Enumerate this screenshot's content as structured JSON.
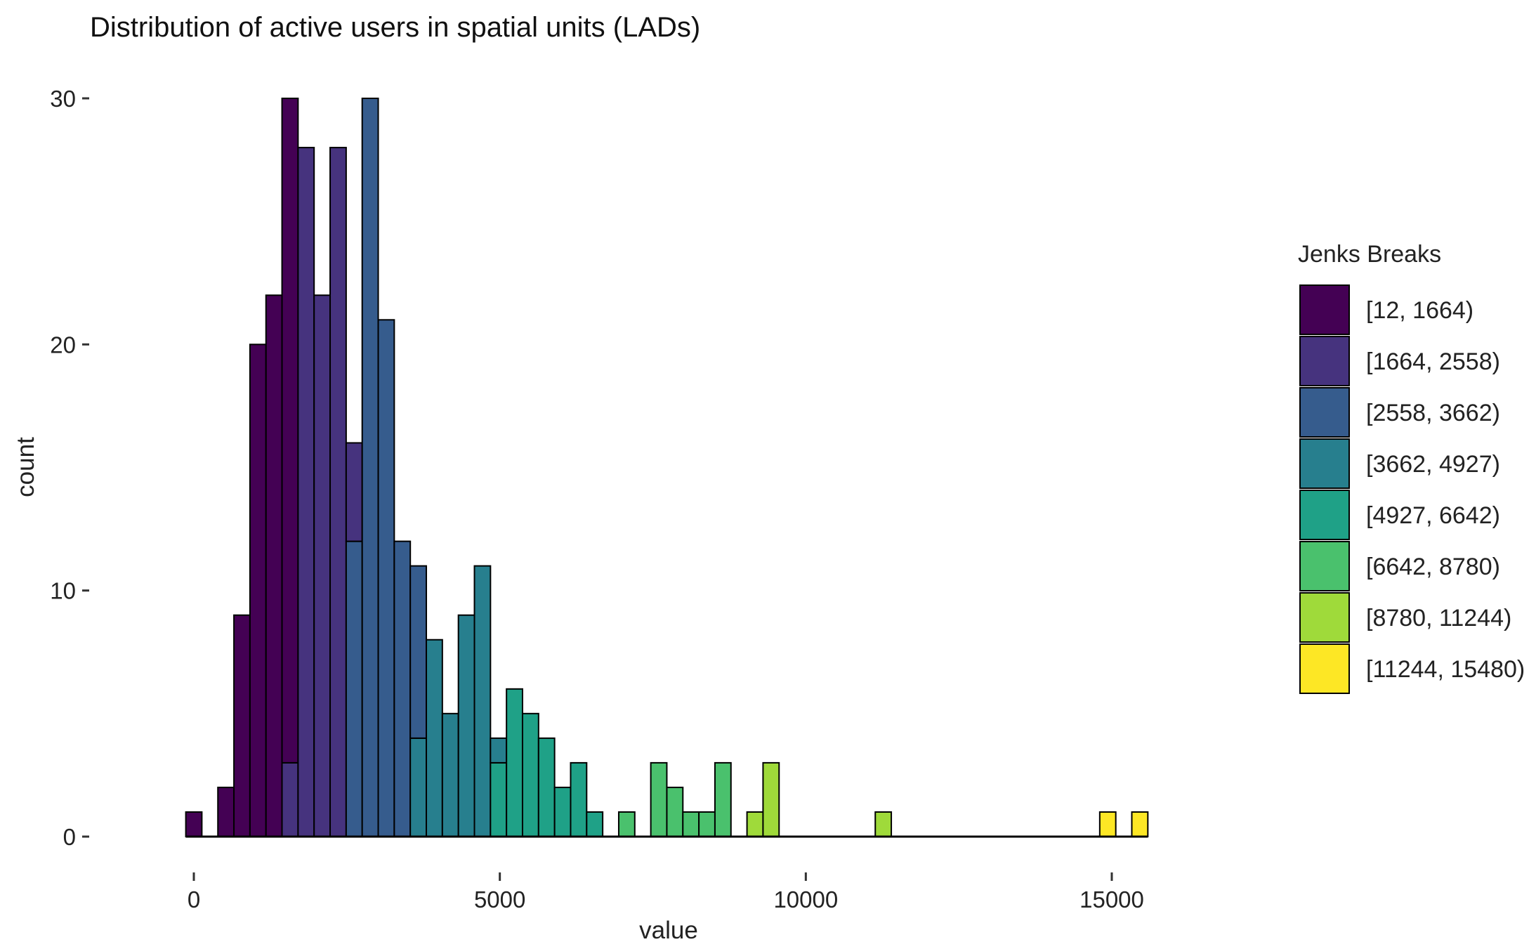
{
  "chart_data": {
    "type": "bar",
    "title": "Distribution of active users in spatial units (LADs)",
    "xlabel": "value",
    "ylabel": "count",
    "xlim": [
      -700,
      16400
    ],
    "ylim": [
      0,
      30
    ],
    "x_ticks": [
      {
        "value": 0,
        "label": "0"
      },
      {
        "value": 5000,
        "label": "5000"
      },
      {
        "value": 10000,
        "label": "10000"
      },
      {
        "value": 15000,
        "label": "15000"
      }
    ],
    "y_ticks": [
      {
        "value": 0,
        "label": "0"
      },
      {
        "value": 10,
        "label": "10"
      },
      {
        "value": 20,
        "label": "20"
      },
      {
        "value": 30,
        "label": "30"
      }
    ],
    "grid": false,
    "legend_position": "right",
    "bin_width": 262,
    "legend": {
      "title": "Jenks Breaks",
      "items": [
        {
          "label": "[12, 1664)",
          "color": "#440154"
        },
        {
          "label": "[1664, 2558)",
          "color": "#46337E"
        },
        {
          "label": "[2558, 3662)",
          "color": "#365C8D"
        },
        {
          "label": "[3662, 4927)",
          "color": "#277F8E"
        },
        {
          "label": "[4927, 6642)",
          "color": "#1FA187"
        },
        {
          "label": "[6642, 8780)",
          "color": "#4AC16D"
        },
        {
          "label": "[8780, 11244)",
          "color": "#9FDA3A"
        },
        {
          "label": "[11244, 15480)",
          "color": "#FDE725"
        }
      ]
    },
    "bins": [
      {
        "x0": -131,
        "x1": 131,
        "segments": [
          {
            "cls": 0,
            "count": 1
          }
        ]
      },
      {
        "x0": 131,
        "x1": 393,
        "segments": []
      },
      {
        "x0": 393,
        "x1": 655,
        "segments": [
          {
            "cls": 0,
            "count": 2
          }
        ]
      },
      {
        "x0": 655,
        "x1": 917,
        "segments": [
          {
            "cls": 0,
            "count": 9
          }
        ]
      },
      {
        "x0": 917,
        "x1": 1179,
        "segments": [
          {
            "cls": 0,
            "count": 20
          }
        ]
      },
      {
        "x0": 1179,
        "x1": 1441,
        "segments": [
          {
            "cls": 0,
            "count": 22
          }
        ]
      },
      {
        "x0": 1441,
        "x1": 1703,
        "segments": [
          {
            "cls": 1,
            "count": 3
          },
          {
            "cls": 0,
            "count": 27
          }
        ]
      },
      {
        "x0": 1703,
        "x1": 1965,
        "segments": [
          {
            "cls": 1,
            "count": 28
          }
        ]
      },
      {
        "x0": 1965,
        "x1": 2227,
        "segments": [
          {
            "cls": 1,
            "count": 22
          }
        ]
      },
      {
        "x0": 2227,
        "x1": 2489,
        "segments": [
          {
            "cls": 1,
            "count": 28
          }
        ]
      },
      {
        "x0": 2489,
        "x1": 2751,
        "segments": [
          {
            "cls": 2,
            "count": 12
          },
          {
            "cls": 1,
            "count": 4
          }
        ]
      },
      {
        "x0": 2751,
        "x1": 3013,
        "segments": [
          {
            "cls": 2,
            "count": 30
          }
        ]
      },
      {
        "x0": 3013,
        "x1": 3275,
        "segments": [
          {
            "cls": 2,
            "count": 21
          }
        ]
      },
      {
        "x0": 3275,
        "x1": 3537,
        "segments": [
          {
            "cls": 2,
            "count": 12
          }
        ]
      },
      {
        "x0": 3537,
        "x1": 3799,
        "segments": [
          {
            "cls": 3,
            "count": 4
          },
          {
            "cls": 2,
            "count": 7
          }
        ]
      },
      {
        "x0": 3799,
        "x1": 4061,
        "segments": [
          {
            "cls": 3,
            "count": 8
          }
        ]
      },
      {
        "x0": 4061,
        "x1": 4323,
        "segments": [
          {
            "cls": 3,
            "count": 5
          }
        ]
      },
      {
        "x0": 4323,
        "x1": 4585,
        "segments": [
          {
            "cls": 3,
            "count": 9
          }
        ]
      },
      {
        "x0": 4585,
        "x1": 4847,
        "segments": [
          {
            "cls": 3,
            "count": 11
          }
        ]
      },
      {
        "x0": 4847,
        "x1": 5109,
        "segments": [
          {
            "cls": 4,
            "count": 3
          },
          {
            "cls": 3,
            "count": 1
          }
        ]
      },
      {
        "x0": 5109,
        "x1": 5371,
        "segments": [
          {
            "cls": 4,
            "count": 6
          }
        ]
      },
      {
        "x0": 5371,
        "x1": 5633,
        "segments": [
          {
            "cls": 4,
            "count": 5
          }
        ]
      },
      {
        "x0": 5633,
        "x1": 5895,
        "segments": [
          {
            "cls": 4,
            "count": 4
          }
        ]
      },
      {
        "x0": 5895,
        "x1": 6157,
        "segments": [
          {
            "cls": 4,
            "count": 2
          }
        ]
      },
      {
        "x0": 6157,
        "x1": 6419,
        "segments": [
          {
            "cls": 4,
            "count": 3
          }
        ]
      },
      {
        "x0": 6419,
        "x1": 6681,
        "segments": [
          {
            "cls": 4,
            "count": 1
          }
        ]
      },
      {
        "x0": 6681,
        "x1": 6943,
        "segments": []
      },
      {
        "x0": 6943,
        "x1": 7205,
        "segments": [
          {
            "cls": 5,
            "count": 1
          }
        ]
      },
      {
        "x0": 7205,
        "x1": 7467,
        "segments": []
      },
      {
        "x0": 7467,
        "x1": 7729,
        "segments": [
          {
            "cls": 5,
            "count": 3
          }
        ]
      },
      {
        "x0": 7729,
        "x1": 7991,
        "segments": [
          {
            "cls": 5,
            "count": 2
          }
        ]
      },
      {
        "x0": 7991,
        "x1": 8253,
        "segments": [
          {
            "cls": 5,
            "count": 1
          }
        ]
      },
      {
        "x0": 8253,
        "x1": 8515,
        "segments": [
          {
            "cls": 5,
            "count": 1
          }
        ]
      },
      {
        "x0": 8515,
        "x1": 8777,
        "segments": [
          {
            "cls": 5,
            "count": 3
          }
        ]
      },
      {
        "x0": 8777,
        "x1": 9039,
        "segments": []
      },
      {
        "x0": 9039,
        "x1": 9301,
        "segments": [
          {
            "cls": 6,
            "count": 1
          }
        ]
      },
      {
        "x0": 9301,
        "x1": 9563,
        "segments": [
          {
            "cls": 6,
            "count": 3
          }
        ]
      },
      {
        "x0": 9563,
        "x1": 9825,
        "segments": []
      },
      {
        "x0": 9825,
        "x1": 10087,
        "segments": []
      },
      {
        "x0": 10087,
        "x1": 10349,
        "segments": []
      },
      {
        "x0": 10349,
        "x1": 10611,
        "segments": []
      },
      {
        "x0": 10611,
        "x1": 10873,
        "segments": []
      },
      {
        "x0": 10873,
        "x1": 11135,
        "segments": []
      },
      {
        "x0": 11135,
        "x1": 11397,
        "segments": [
          {
            "cls": 6,
            "count": 1
          }
        ]
      },
      {
        "x0": 11397,
        "x1": 11659,
        "segments": []
      },
      {
        "x0": 11659,
        "x1": 11921,
        "segments": []
      },
      {
        "x0": 11921,
        "x1": 12183,
        "segments": []
      },
      {
        "x0": 12183,
        "x1": 12445,
        "segments": []
      },
      {
        "x0": 12445,
        "x1": 12707,
        "segments": []
      },
      {
        "x0": 12707,
        "x1": 12969,
        "segments": []
      },
      {
        "x0": 12969,
        "x1": 13231,
        "segments": []
      },
      {
        "x0": 13231,
        "x1": 13493,
        "segments": []
      },
      {
        "x0": 13493,
        "x1": 13755,
        "segments": []
      },
      {
        "x0": 13755,
        "x1": 14017,
        "segments": []
      },
      {
        "x0": 14017,
        "x1": 14279,
        "segments": []
      },
      {
        "x0": 14279,
        "x1": 14541,
        "segments": []
      },
      {
        "x0": 14541,
        "x1": 14803,
        "segments": []
      },
      {
        "x0": 14803,
        "x1": 15065,
        "segments": [
          {
            "cls": 7,
            "count": 1
          }
        ]
      },
      {
        "x0": 15065,
        "x1": 15327,
        "segments": []
      },
      {
        "x0": 15327,
        "x1": 15589,
        "segments": [
          {
            "cls": 7,
            "count": 1
          }
        ]
      }
    ]
  }
}
